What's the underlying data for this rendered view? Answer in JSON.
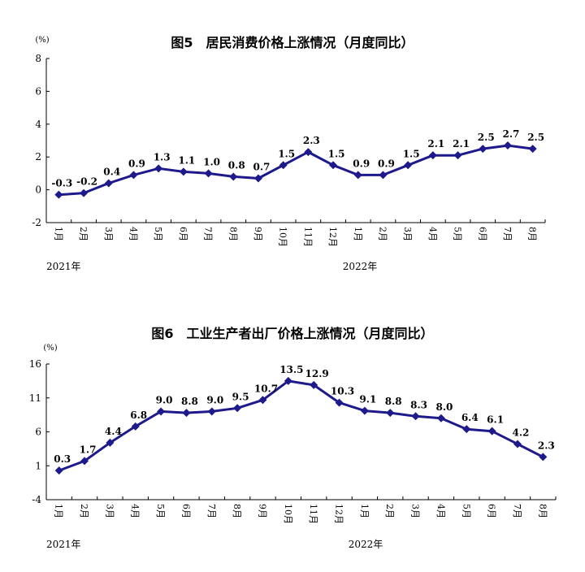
{
  "chart_data": [
    {
      "type": "line",
      "title": "图5　居民消费价格上涨情况（月度同比）",
      "unit": "(%)",
      "ylim": [
        -2,
        8
      ],
      "yticks": [
        -2,
        0,
        2,
        4,
        6,
        8
      ],
      "categories": [
        "1月",
        "2月",
        "3月",
        "4月",
        "5月",
        "6月",
        "7月",
        "8月",
        "9月",
        "10月",
        "11月",
        "12月",
        "1月",
        "2月",
        "3月",
        "4月",
        "5月",
        "6月",
        "7月",
        "8月"
      ],
      "years": [
        "2021年",
        "2022年"
      ],
      "series": [
        {
          "values": [
            -0.3,
            -0.2,
            0.4,
            0.9,
            1.3,
            1.1,
            1.0,
            0.8,
            0.7,
            1.5,
            2.3,
            1.5,
            0.9,
            0.9,
            1.5,
            2.1,
            2.1,
            2.5,
            2.7,
            2.5
          ],
          "labels": [
            "-0.3",
            "-0.2",
            "0.4",
            "0.9",
            "1.3",
            "1.1",
            "1.0",
            "0.8",
            "0.7",
            "1.5",
            "2.3",
            "1.5",
            "0.9",
            "0.9",
            "1.5",
            "2.1",
            "2.1",
            "2.5",
            "2.7",
            "2.5"
          ]
        }
      ],
      "color": "#1f1a8c",
      "grid": false
    },
    {
      "type": "line",
      "title": "图6　工业生产者出厂价格上涨情况（月度同比）",
      "unit": "(%)",
      "ylim": [
        -4,
        16
      ],
      "yticks": [
        -4,
        1,
        6,
        11,
        16
      ],
      "categories": [
        "1月",
        "2月",
        "3月",
        "4月",
        "5月",
        "6月",
        "7月",
        "8月",
        "9月",
        "10月",
        "11月",
        "12月",
        "1月",
        "2月",
        "3月",
        "4月",
        "5月",
        "6月",
        "7月",
        "8月"
      ],
      "years": [
        "2021年",
        "2022年"
      ],
      "series": [
        {
          "values": [
            0.3,
            1.7,
            4.4,
            6.8,
            9.0,
            8.8,
            9.0,
            9.5,
            10.7,
            13.5,
            12.9,
            10.3,
            9.1,
            8.8,
            8.3,
            8.0,
            6.4,
            6.1,
            4.2,
            2.3
          ],
          "labels": [
            "0.3",
            "1.7",
            "4.4",
            "6.8",
            "9.0",
            "8.8",
            "9.0",
            "9.5",
            "10.7",
            "13.5",
            "12.9",
            "10.3",
            "9.1",
            "8.8",
            "8.3",
            "8.0",
            "6.4",
            "6.1",
            "4.2",
            "2.3"
          ]
        }
      ],
      "color": "#1f1a8c",
      "grid": false
    }
  ]
}
